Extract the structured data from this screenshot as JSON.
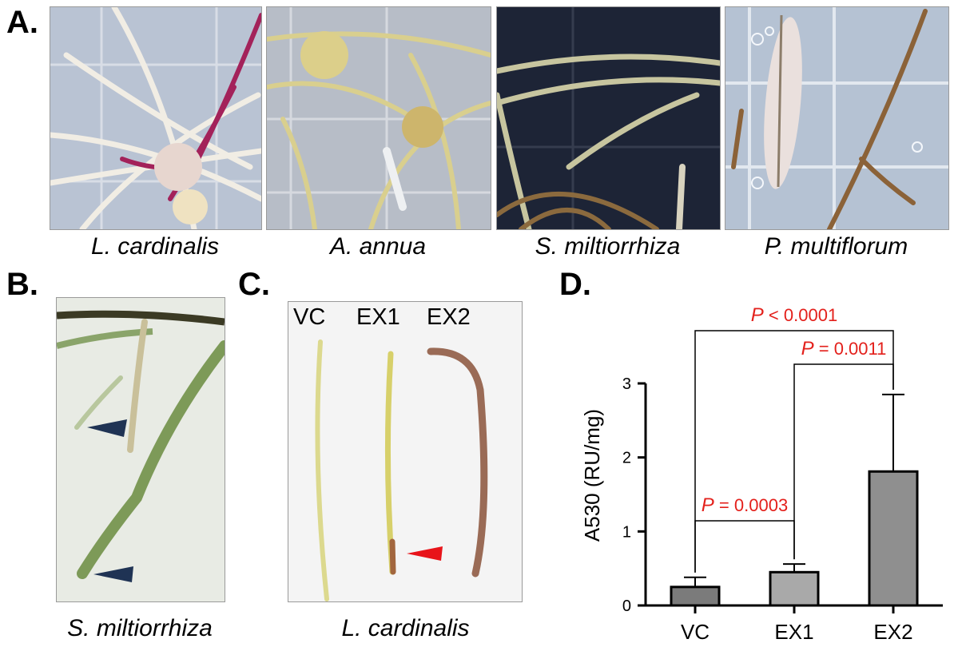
{
  "panel_labels": {
    "a": "A.",
    "b": "B.",
    "c": "C.",
    "d": "D."
  },
  "panel_a": {
    "captions": [
      "L. cardinalis",
      "A. annua",
      "S. miltiorrhiza",
      "P. multiflorum"
    ]
  },
  "panel_b": {
    "caption": "S. miltiorrhiza"
  },
  "panel_c": {
    "caption": "L. cardinalis",
    "lanes": [
      "VC",
      "EX1",
      "EX2"
    ]
  },
  "colors": {
    "bar_vc": "#7b7b7b",
    "bar_ex1": "#a9a9a9",
    "bar_ex2": "#8f8f8f",
    "stat_text": "#e3201b",
    "arrowhead_b": "#1f3354",
    "arrowhead_c": "#e8141a"
  },
  "chart_data": {
    "type": "bar",
    "categories": [
      "VC",
      "EX1",
      "EX2"
    ],
    "values": [
      0.25,
      0.45,
      1.81
    ],
    "error_upper": [
      0.38,
      0.56,
      2.85
    ],
    "ylabel": "A530 (RU/mg)",
    "ylim": [
      0,
      3
    ],
    "yticks": [
      "0",
      "1",
      "2",
      "3"
    ],
    "comparisons": [
      {
        "from": "VC",
        "to": "EX1",
        "p_symbol": "P",
        "p_text": " = 0.0003"
      },
      {
        "from": "EX1",
        "to": "EX2",
        "p_symbol": "P",
        "p_text": " = 0.0011"
      },
      {
        "from": "VC",
        "to": "EX2",
        "p_symbol": "P",
        "p_text": " < 0.0001"
      }
    ]
  }
}
